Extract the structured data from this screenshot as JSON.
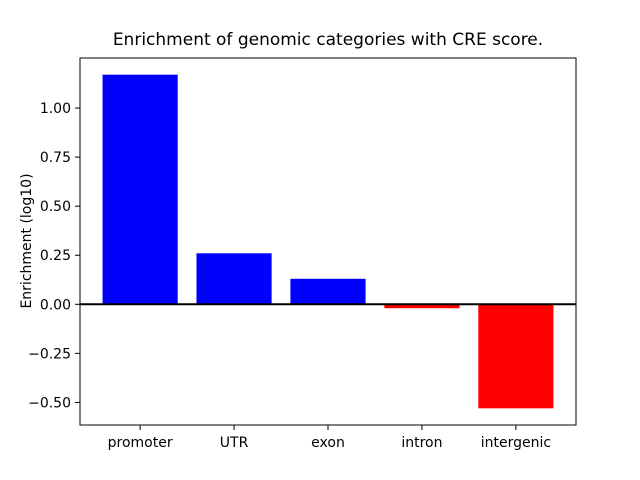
{
  "figure": {
    "background": "#ffffff"
  },
  "chart_data": {
    "type": "bar",
    "title": "Enrichment of genomic categories with CRE score.",
    "ylabel": "Enrichment (log10)",
    "xlabel": "",
    "categories": [
      "promoter",
      "UTR",
      "exon",
      "intron",
      "intergenic"
    ],
    "values": [
      1.17,
      0.26,
      0.13,
      -0.02,
      -0.53
    ],
    "positive_color": "#0000ff",
    "negative_color": "#ff0000",
    "ytick_values": [
      1.0,
      0.75,
      0.5,
      0.25,
      0.0,
      -0.25,
      -0.5
    ],
    "ytick_labels": [
      "1.00",
      "0.75",
      "0.50",
      "0.25",
      "0.00",
      "−0.25",
      "−0.50"
    ],
    "ylim": [
      -0.615,
      1.255
    ],
    "grid": false,
    "legend": "none",
    "zero_line": true,
    "axis_color": "#000000"
  }
}
